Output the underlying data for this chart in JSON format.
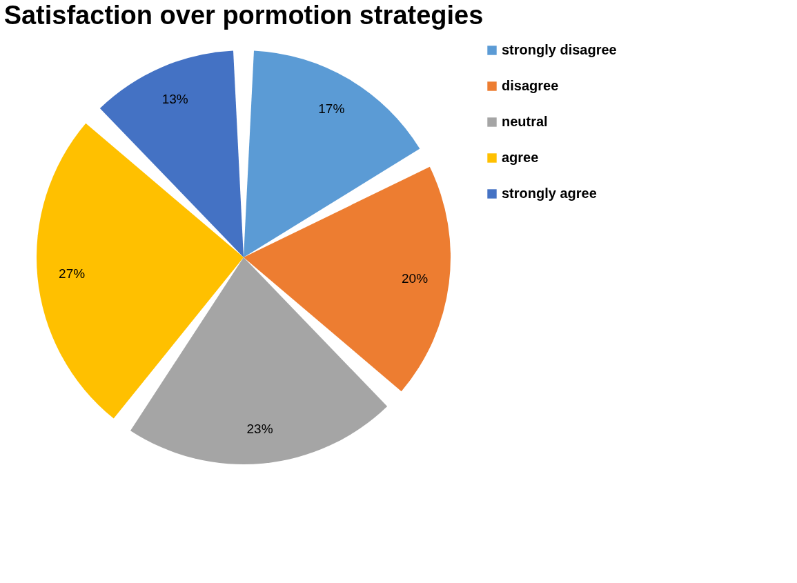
{
  "chart_data": {
    "type": "pie",
    "title": "Satisfaction over pormotion strategies",
    "categories": [
      "strongly disagree",
      "disagree",
      "neutral",
      "agree",
      "strongly agree"
    ],
    "values": [
      17,
      20,
      23,
      27,
      13
    ],
    "value_labels": [
      "17%",
      "20%",
      "23%",
      "27%",
      "13%"
    ],
    "colors": [
      "#5b9bd5",
      "#ed7d31",
      "#a5a5a5",
      "#ffc000",
      "#4472c4"
    ],
    "legend": "right"
  }
}
